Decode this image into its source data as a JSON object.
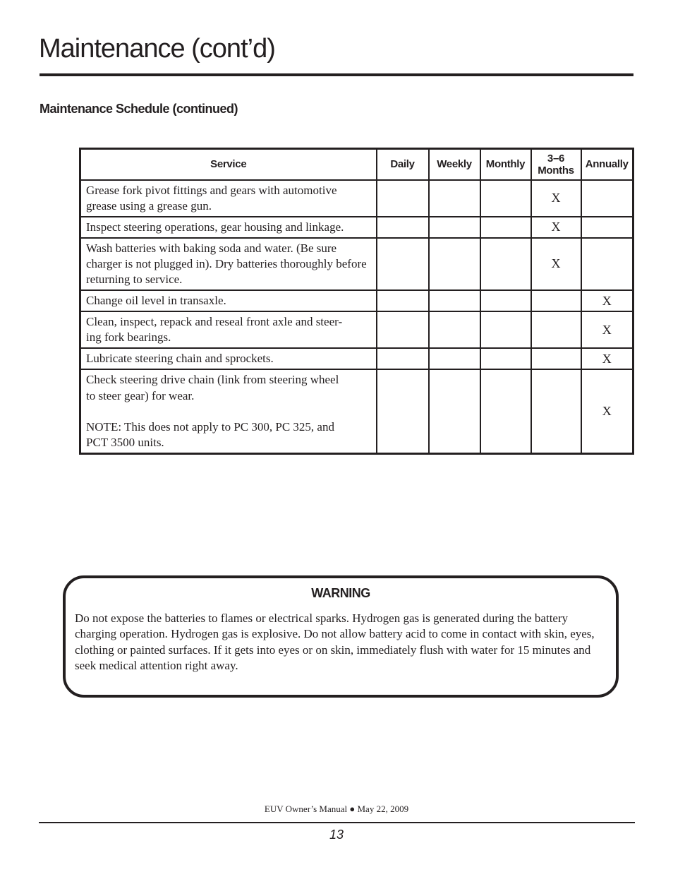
{
  "page": {
    "title": "Maintenance (cont’d)",
    "subtitle": "Maintenance Schedule (continued)"
  },
  "table": {
    "headers": {
      "service": "Service",
      "daily": "Daily",
      "weekly": "Weekly",
      "monthly": "Monthly",
      "months_3_6": [
        "3–6",
        "Months"
      ],
      "annually": "Annually"
    },
    "rows": [
      {
        "service": "Grease fork pivot fittings and gears with automotive grease using a grease gun.",
        "marks": [
          "",
          "",
          "",
          "X",
          ""
        ]
      },
      {
        "service": "Inspect steering operations, gear housing and linkage.",
        "marks": [
          "",
          "",
          "",
          "X",
          ""
        ]
      },
      {
        "service": "Wash batteries with baking soda and water. (Be sure charger is not plugged in). Dry batteries thoroughly before returning to service.",
        "marks": [
          "",
          "",
          "",
          "X",
          ""
        ]
      },
      {
        "service": "Change oil level in transaxle.",
        "marks": [
          "",
          "",
          "",
          "",
          "X"
        ]
      },
      {
        "service": [
          "Clean, inspect, repack and reseal front axle and steer-",
          "ing fork bearings."
        ],
        "marks": [
          "",
          "",
          "",
          "",
          "X"
        ]
      },
      {
        "service": "Lubricate steering chain and sprockets.",
        "marks": [
          "",
          "",
          "",
          "",
          "X"
        ]
      },
      {
        "service": [
          "Check steering drive chain (link from steering wheel",
          "to steer gear) for wear.",
          "",
          "NOTE: This does not apply to PC 300, PC 325,  and",
          "PCT 3500 units."
        ],
        "marks": [
          "",
          "",
          "",
          "",
          "X"
        ]
      }
    ]
  },
  "warning": {
    "title": "WARNING",
    "body": "Do not expose the batteries to flames or electrical sparks. Hydrogen gas is generated during the battery charging operation. Hydrogen gas is explosive. Do not allow battery acid to come in contact with skin, eyes, clothing or painted surfaces. If it gets into eyes or on skin, immediately flush with water for 15 minutes and seek medical attention right away."
  },
  "footer": {
    "manual_line": "EUV Owner’s Manual ● May 22, 2009",
    "page_number": "13"
  },
  "colors": {
    "ink": "#231f20",
    "background": "#ffffff"
  }
}
